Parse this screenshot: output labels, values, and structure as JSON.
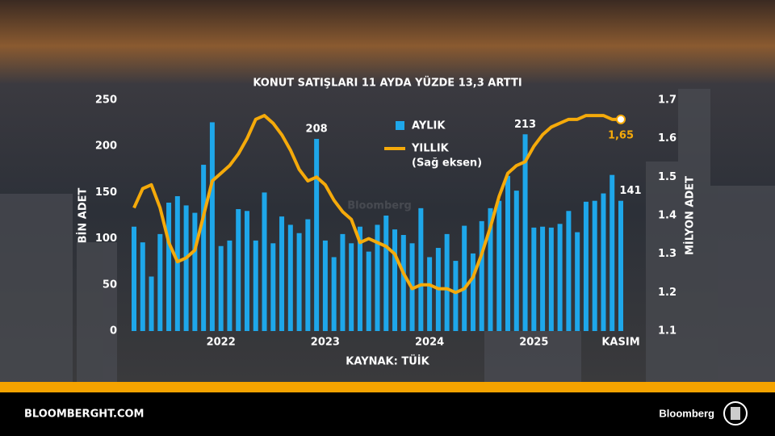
{
  "chart_data": {
    "type": "bar-line",
    "title": "KONUT SATIŞLARI 11 AYDA YÜZDE 13,3 ARTTI",
    "y_label": "BİN ADET",
    "y2_label": "MİLYON ADET",
    "source": "KAYNAK: TÜİK",
    "legend_note": "(Sağ eksen)",
    "watermark": "Bloomberg",
    "categories": [
      null,
      null,
      null,
      null,
      null,
      null,
      null,
      null,
      null,
      null,
      "2022",
      null,
      null,
      null,
      null,
      null,
      null,
      null,
      null,
      null,
      null,
      null,
      "2023",
      null,
      null,
      null,
      null,
      null,
      null,
      null,
      null,
      null,
      null,
      null,
      "2024",
      null,
      null,
      null,
      null,
      null,
      null,
      null,
      null,
      null,
      null,
      null,
      "2025",
      null,
      null,
      null,
      null,
      null,
      null,
      null,
      null,
      null,
      "KASIM"
    ],
    "ylim": [
      0,
      250
    ],
    "yticks": [
      0,
      50,
      100,
      150,
      200,
      250
    ],
    "y2lim": [
      1.1,
      1.7
    ],
    "y2ticks": [
      1.1,
      1.2,
      1.3,
      1.4,
      1.5,
      1.6,
      1.7
    ],
    "grid": false,
    "series": [
      {
        "name": "AYLIK",
        "color": "#1ea7ea",
        "values": [
          113,
          96,
          59,
          105,
          139,
          146,
          136,
          128,
          180,
          226,
          92,
          98,
          132,
          130,
          98,
          150,
          95,
          124,
          115,
          106,
          121,
          208,
          98,
          80,
          105,
          95,
          113,
          86,
          115,
          125,
          110,
          104,
          95,
          133,
          80,
          90,
          105,
          76,
          114,
          84,
          119,
          133,
          141,
          168,
          152,
          213,
          112,
          113,
          112,
          116,
          130,
          107,
          140,
          141,
          149,
          169,
          141
        ],
        "value_labels": [
          null,
          null,
          null,
          null,
          null,
          null,
          null,
          null,
          null,
          null,
          null,
          null,
          null,
          null,
          null,
          null,
          null,
          null,
          null,
          null,
          null,
          "208",
          null,
          null,
          null,
          null,
          null,
          null,
          null,
          null,
          null,
          null,
          null,
          null,
          null,
          null,
          null,
          null,
          null,
          null,
          null,
          null,
          null,
          null,
          null,
          "213",
          null,
          null,
          null,
          null,
          null,
          null,
          null,
          null,
          null,
          null,
          "141"
        ]
      },
      {
        "name": "YILLIK",
        "color": "#f5aa0a",
        "axis": "y2",
        "values": [
          1.42,
          1.47,
          1.48,
          1.42,
          1.33,
          1.28,
          1.29,
          1.31,
          1.4,
          1.49,
          1.51,
          1.53,
          1.56,
          1.6,
          1.65,
          1.66,
          1.64,
          1.61,
          1.57,
          1.52,
          1.49,
          1.5,
          1.48,
          1.44,
          1.41,
          1.39,
          1.33,
          1.34,
          1.33,
          1.32,
          1.3,
          1.25,
          1.21,
          1.22,
          1.22,
          1.21,
          1.21,
          1.2,
          1.21,
          1.24,
          1.3,
          1.37,
          1.45,
          1.51,
          1.53,
          1.54,
          1.58,
          1.61,
          1.63,
          1.64,
          1.65,
          1.65,
          1.66,
          1.66,
          1.66,
          1.65,
          1.65
        ],
        "value_labels": [
          null,
          null,
          null,
          null,
          null,
          null,
          null,
          null,
          null,
          null,
          null,
          null,
          null,
          null,
          null,
          null,
          null,
          null,
          null,
          null,
          null,
          null,
          null,
          null,
          null,
          null,
          null,
          null,
          null,
          null,
          null,
          null,
          null,
          null,
          null,
          null,
          null,
          null,
          null,
          null,
          null,
          null,
          null,
          null,
          null,
          null,
          null,
          null,
          null,
          null,
          null,
          null,
          null,
          null,
          null,
          null,
          "1,65"
        ]
      }
    ]
  },
  "footer": {
    "site": "BLOOMBERGHT.COM",
    "brand": "Bloomberg"
  }
}
